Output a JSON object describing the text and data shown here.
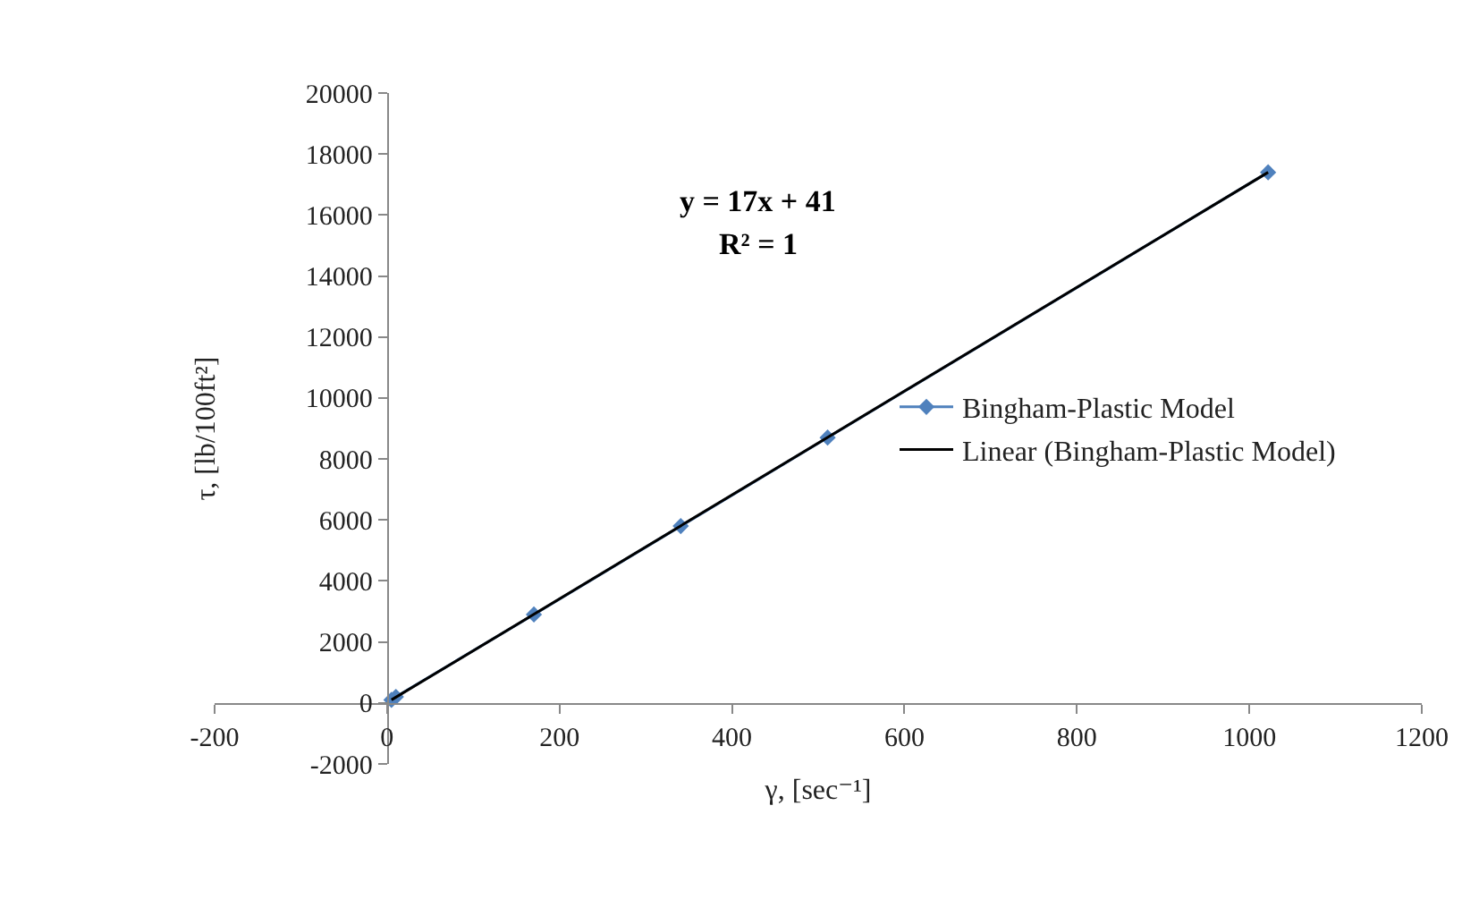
{
  "chart_data": {
    "type": "line",
    "xlabel": "γ, [sec⁻¹]",
    "ylabel": "τ, [lb/100ft²]",
    "x": [
      5.11,
      10.22,
      170.3,
      340.6,
      510.9,
      1021.8
    ],
    "series": [
      {
        "name": "Bingham-Plastic Model",
        "color": "#4f81bd",
        "marker": "diamond",
        "values": [
          100,
          200,
          2900,
          5800,
          8700,
          17400
        ]
      },
      {
        "name": "Linear (Bingham-Plastic Model)",
        "color": "#000000",
        "marker": "none",
        "x": [
          5.11,
          1021.8
        ],
        "values": [
          100,
          17400
        ]
      }
    ],
    "xlim": [
      -200,
      1200
    ],
    "xticks": [
      -200,
      0,
      200,
      400,
      600,
      800,
      1000,
      1200
    ],
    "ylim": [
      -2000,
      20000
    ],
    "yticks": [
      -2000,
      0,
      2000,
      4000,
      6000,
      8000,
      10000,
      12000,
      14000,
      16000,
      18000,
      20000
    ],
    "grid": false,
    "legend": "right",
    "annotations": [
      "y = 17x + 41",
      "R² = 1"
    ]
  }
}
